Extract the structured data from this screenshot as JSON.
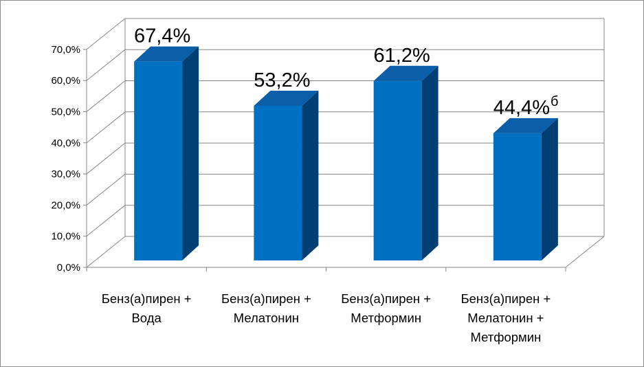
{
  "chart_data": {
    "type": "bar",
    "title": "",
    "xlabel": "",
    "ylabel": "",
    "ylim": [
      0,
      70
    ],
    "y_ticks": [
      "0,0%",
      "10,0%",
      "20,0%",
      "30,0%",
      "40,0%",
      "50,0%",
      "60,0%",
      "70,0%"
    ],
    "categories": [
      [
        "Бенз(а)пирен +",
        "Вода"
      ],
      [
        "Бенз(а)пирен +",
        "Мелатонин"
      ],
      [
        "Бенз(а)пирен +",
        "Метформин"
      ],
      [
        "Бенз(а)пирен +",
        "Мелатонин +",
        "Метформин"
      ]
    ],
    "values": [
      67.4,
      53.2,
      61.2,
      44.4
    ],
    "data_labels": [
      "67,4%",
      "53,2%",
      "61,2%",
      "44,4%"
    ],
    "data_label_superscripts": [
      "",
      "",
      "",
      "б"
    ],
    "grid": true,
    "legend": "none",
    "colors": {
      "bar_front": "#0070C0",
      "bar_top": "#0A5FA8",
      "bar_side": "#003F73",
      "grid": "#868686"
    }
  }
}
